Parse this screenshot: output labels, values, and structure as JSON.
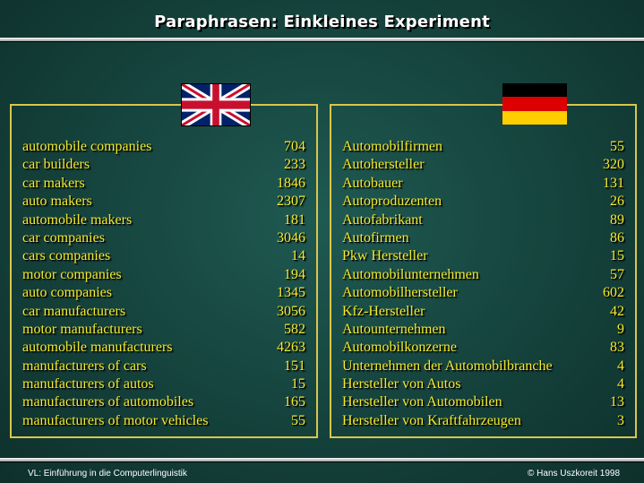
{
  "slide": {
    "title": "Paraphrasen: Einkleines Experiment",
    "colors": {
      "accent": "#f5ec2e",
      "panel_border": "#d9c64a",
      "background": "#15423c"
    }
  },
  "english": {
    "flag_icon": "uk-flag-icon",
    "rows": [
      {
        "term": "automobile companies",
        "count": "704"
      },
      {
        "term": "car builders",
        "count": "233"
      },
      {
        "term": "car makers",
        "count": "1846"
      },
      {
        "term": "auto makers",
        "count": "2307"
      },
      {
        "term": "automobile makers",
        "count": "181"
      },
      {
        "term": "car companies",
        "count": "3046"
      },
      {
        "term": "cars companies",
        "count": "14"
      },
      {
        "term": "motor companies",
        "count": "194"
      },
      {
        "term": "auto companies",
        "count": "1345"
      },
      {
        "term": "car manufacturers",
        "count": "3056"
      },
      {
        "term": "motor manufacturers",
        "count": "582"
      },
      {
        "term": "automobile manufacturers",
        "count": "4263"
      },
      {
        "term": "manufacturers of cars",
        "count": "151"
      },
      {
        "term": "manufacturers of autos",
        "count": "15"
      },
      {
        "term": "manufacturers of automobiles",
        "count": "165"
      },
      {
        "term": "manufacturers of motor vehicles",
        "count": "55"
      }
    ]
  },
  "german": {
    "flag_icon": "german-flag-icon",
    "rows": [
      {
        "term": "Automobilfirmen",
        "count": "55"
      },
      {
        "term": "Autohersteller",
        "count": "320"
      },
      {
        "term": "Autobauer",
        "count": "131"
      },
      {
        "term": "Autoproduzenten",
        "count": "26"
      },
      {
        "term": "Autofabrikant",
        "count": "89"
      },
      {
        "term": "Autofirmen",
        "count": "86"
      },
      {
        "term": "Pkw Hersteller",
        "count": "15"
      },
      {
        "term": "Automobilunternehmen",
        "count": "57"
      },
      {
        "term": "Automobilhersteller",
        "count": "602"
      },
      {
        "term": "Kfz-Hersteller",
        "count": "42"
      },
      {
        "term": "Autounternehmen",
        "count": "9"
      },
      {
        "term": "Automobilkonzerne",
        "count": "83"
      },
      {
        "term": "Unternehmen der Automobilbranche",
        "count": "4"
      },
      {
        "term": "Hersteller von Autos",
        "count": "4"
      },
      {
        "term": "Hersteller von Automobilen",
        "count": "13"
      },
      {
        "term": "Hersteller von Kraftfahrzeugen",
        "count": "3"
      }
    ]
  },
  "footer": {
    "left": "VL: Einführung in die Computerlinguistik",
    "right": "© Hans Uszkoreit 1998"
  }
}
